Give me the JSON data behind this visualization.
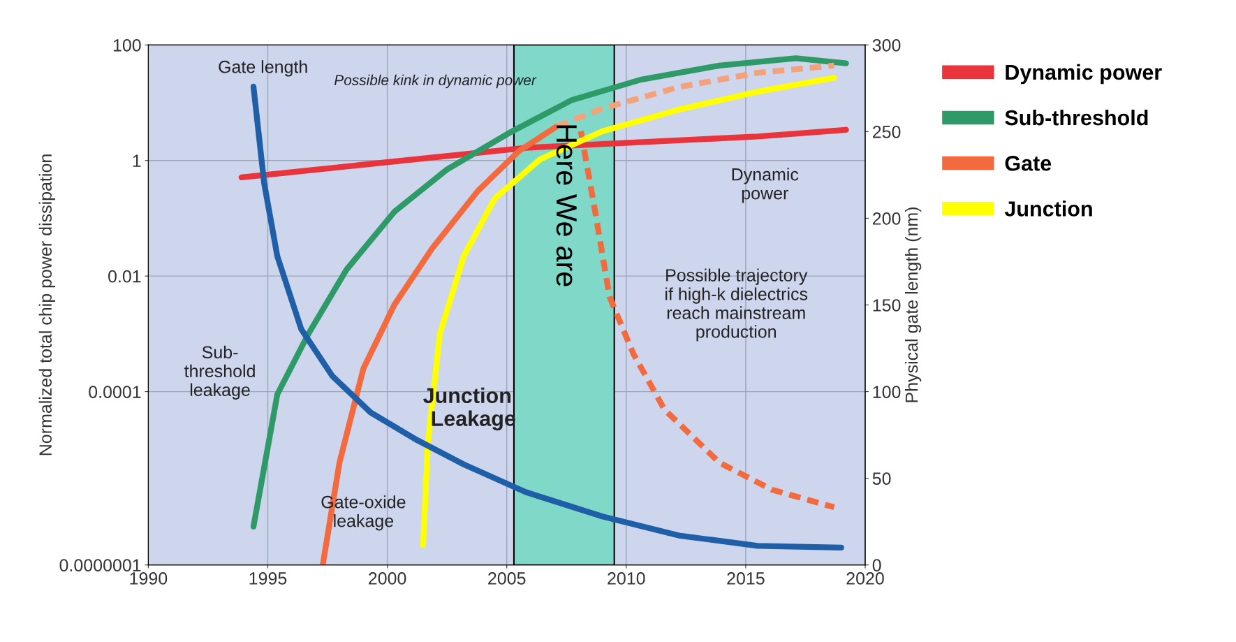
{
  "chart_data": {
    "type": "line",
    "xlabel": null,
    "ylabel": "Normalized total chip power dissipation",
    "y2label": "Physical gate length (nm)",
    "xlim": [
      1990,
      2020
    ],
    "xticks": [
      1990,
      1995,
      2000,
      2005,
      2010,
      2015,
      2020
    ],
    "ylim": [
      1e-07,
      100
    ],
    "yticks": [
      {
        "value": 1e-07,
        "label": "0.0000001"
      },
      0.0001,
      0.01,
      1,
      100
    ],
    "y2lim": [
      0,
      300
    ],
    "y2ticks": [
      0,
      50,
      100,
      150,
      200,
      250,
      300
    ],
    "log": "y",
    "grid": true,
    "legend": "right",
    "line_style": "solid",
    "marker": "none",
    "series": [
      {
        "name": "Dynamic power",
        "color": "#e8343a",
        "x": [
          1993.9,
          2005.8,
          2015.5,
          2019.2
        ],
        "values": [
          0.51,
          1.66,
          2.6,
          3.4
        ]
      },
      {
        "name": "Sub-threshold",
        "color": "#2e9a68",
        "x": [
          1994.4,
          1995.4,
          1996.7,
          1998.3,
          2000.3,
          2002.5,
          2005.1,
          2007.7,
          2010.6,
          2013.9,
          2017.1,
          2019.2
        ],
        "values": [
          4.6e-07,
          9e-05,
          0.001,
          0.013,
          0.13,
          0.7,
          3,
          11,
          25,
          44,
          59,
          48
        ]
      },
      {
        "name": "Gate",
        "color": "#f26a3d",
        "x": [
          1997.3,
          1998.0,
          1999.0,
          2000.3,
          2001.9,
          2003.8,
          2005.5,
          2007.1
        ],
        "values": [
          1e-07,
          5.9e-06,
          0.00025,
          0.0032,
          0.031,
          0.3,
          1.45,
          3.9
        ]
      },
      {
        "color": "#f4a27c",
        "line_style": "dashed",
        "x": [
          2007.1,
          2009.0,
          2012.2,
          2015.5,
          2018.7
        ],
        "values": [
          3.9,
          7.9,
          18.6,
          33,
          44
        ]
      },
      {
        "color": "#f26a3d",
        "line_style": "dashed",
        "x": [
          2008.1,
          2008.7,
          2009.3,
          2010.3,
          2011.6,
          2013.9,
          2016.1,
          2018.7
        ],
        "values": [
          3.2,
          0.13,
          0.0044,
          0.00045,
          4.9e-05,
          5.9e-06,
          2e-06,
          1e-06
        ]
      },
      {
        "name": "Junction",
        "color": "#ffff00",
        "x": [
          2001.5,
          2001.7,
          2002.2,
          2003.2,
          2004.5,
          2006.4,
          2009.0,
          2012.2,
          2015.5,
          2018.7
        ],
        "values": [
          2.2e-07,
          1.3e-05,
          0.001,
          0.022,
          0.22,
          1.05,
          3.2,
          7.6,
          15.5,
          27
        ]
      },
      {
        "color": "#1f5fa8",
        "axis": "y2",
        "x": [
          1994.4,
          1994.85,
          1995.4,
          1996.4,
          1997.7,
          1999.3,
          2001.25,
          2003.2,
          2005.8,
          2009.0,
          2012.2,
          2015.5,
          2019.0
        ],
        "values": [
          276,
          220,
          178,
          136,
          109,
          88,
          72,
          58,
          42,
          28,
          17,
          11,
          10
        ]
      }
    ],
    "bands": [
      {
        "axis": "x",
        "from": 2005.3,
        "to": 2009.5,
        "label": "Here We are",
        "color": "#80d8c8"
      }
    ],
    "annotations": [
      "Gate length",
      "Possible kink in dynamic power",
      "Dynamic\npower",
      "Sub-\nthreshold\nleakage",
      "Gate-oxide\nleakage",
      "Junction\n  Leakage",
      "Possible trajectory\nif high-k dielectrics\nreach mainstream\nproduction"
    ]
  }
}
